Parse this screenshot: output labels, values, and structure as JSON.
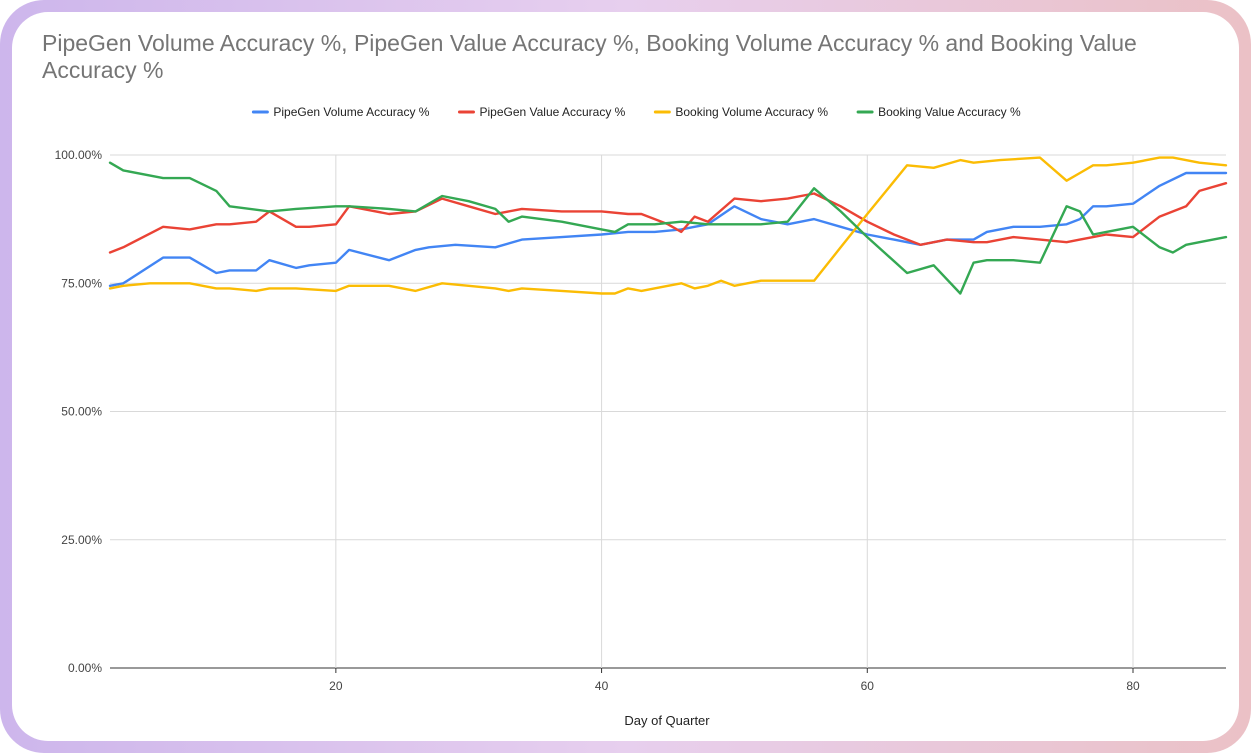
{
  "chart_data": {
    "type": "line",
    "title": "PipeGen Volume Accuracy %, PipeGen Value Accuracy %, Booking Volume Accuracy % and Booking Value Accuracy %",
    "xlabel": "Day of Quarter",
    "ylabel": "",
    "xlim": [
      3,
      87
    ],
    "ylim": [
      0,
      100
    ],
    "x_ticks": [
      20,
      40,
      60,
      80
    ],
    "y_ticks": [
      "0.00%",
      "25.00%",
      "50.00%",
      "75.00%",
      "100.00%"
    ],
    "legend_position": "top",
    "grid": true,
    "series": [
      {
        "name": "PipeGen Volume Accuracy %",
        "color": "#4285f4",
        "x": [
          3,
          4,
          7,
          9,
          11,
          12,
          14,
          15,
          17,
          18,
          20,
          21,
          24,
          26,
          27,
          29,
          32,
          34,
          37,
          40,
          42,
          44,
          46,
          47,
          48,
          50,
          52,
          54,
          56,
          58,
          60,
          62,
          64,
          66,
          68,
          69,
          71,
          73,
          75,
          76,
          77,
          78,
          80,
          82,
          84,
          85,
          87
        ],
        "values": [
          74.5,
          75,
          80,
          80,
          77,
          77.5,
          77.5,
          79.5,
          78,
          78.5,
          79,
          81.5,
          79.5,
          81.5,
          82,
          82.5,
          82,
          83.5,
          84,
          84.5,
          85,
          85,
          85.5,
          86,
          86.5,
          90,
          87.5,
          86.5,
          87.5,
          86,
          84.5,
          83.5,
          82.5,
          83.5,
          83.5,
          85,
          86,
          86,
          86.5,
          87.5,
          90,
          90,
          90.5,
          94,
          96.5,
          96.5,
          96.5
        ]
      },
      {
        "name": "PipeGen Value Accuracy %",
        "color": "#ea4335",
        "x": [
          3,
          4,
          7,
          9,
          11,
          12,
          14,
          15,
          17,
          18,
          20,
          21,
          24,
          26,
          28,
          30,
          32,
          34,
          37,
          40,
          42,
          43,
          45,
          46,
          47,
          48,
          50,
          52,
          54,
          56,
          58,
          60,
          62,
          64,
          66,
          68,
          69,
          71,
          73,
          75,
          76,
          77,
          78,
          80,
          82,
          84,
          85,
          87
        ],
        "values": [
          81,
          82,
          86,
          85.5,
          86.5,
          86.5,
          87,
          89,
          86,
          86,
          86.5,
          90,
          88.5,
          89,
          91.5,
          90,
          88.5,
          89.5,
          89,
          89,
          88.5,
          88.5,
          86.5,
          85,
          88,
          87,
          91.5,
          91,
          91.5,
          92.5,
          90,
          87,
          84.5,
          82.5,
          83.5,
          83,
          83,
          84,
          83.5,
          83,
          83.5,
          84,
          84.5,
          84,
          88,
          90,
          93,
          94.5
        ]
      },
      {
        "name": "Booking Volume Accuracy %",
        "color": "#fbbc04",
        "x": [
          3,
          4,
          6,
          9,
          11,
          12,
          14,
          15,
          17,
          20,
          21,
          24,
          26,
          28,
          30,
          32,
          33,
          34,
          37,
          40,
          41,
          42,
          43,
          45,
          46,
          47,
          48,
          49,
          50,
          52,
          54,
          56,
          58,
          60,
          63,
          65,
          67,
          68,
          70,
          73,
          75,
          76,
          77,
          78,
          80,
          82,
          83,
          85,
          87
        ],
        "values": [
          74,
          74.5,
          75,
          75,
          74,
          74,
          73.5,
          74,
          74,
          73.5,
          74.5,
          74.5,
          73.5,
          75,
          74.5,
          74,
          73.5,
          74,
          73.5,
          73,
          73,
          74,
          73.5,
          74.5,
          75,
          74,
          74.5,
          75.5,
          74.5,
          75.5,
          75.5,
          75.5,
          82,
          88.5,
          98,
          97.5,
          99,
          98.5,
          99,
          99.5,
          95,
          96.5,
          98,
          98,
          98.5,
          99.5,
          99.5,
          98.5,
          98
        ]
      },
      {
        "name": "Booking Value Accuracy %",
        "color": "#34a853",
        "x": [
          3,
          4,
          7,
          9,
          11,
          12,
          15,
          17,
          20,
          21,
          24,
          26,
          28,
          30,
          32,
          33,
          34,
          37,
          40,
          41,
          42,
          44,
          46,
          48,
          50,
          52,
          54,
          56,
          58,
          60,
          63,
          65,
          67,
          68,
          69,
          71,
          73,
          75,
          76,
          77,
          78,
          80,
          82,
          83,
          84,
          85,
          87
        ],
        "values": [
          98.5,
          97,
          95.5,
          95.5,
          93,
          90,
          89,
          89.5,
          90,
          90,
          89.5,
          89,
          92,
          91,
          89.5,
          87,
          88,
          87,
          85.5,
          85,
          86.5,
          86.5,
          87,
          86.5,
          86.5,
          86.5,
          87,
          93.5,
          89,
          84,
          77,
          78.5,
          73,
          79,
          79.5,
          79.5,
          79,
          90,
          89,
          84.5,
          85,
          86,
          82,
          81,
          82.5,
          83,
          84
        ]
      }
    ]
  }
}
